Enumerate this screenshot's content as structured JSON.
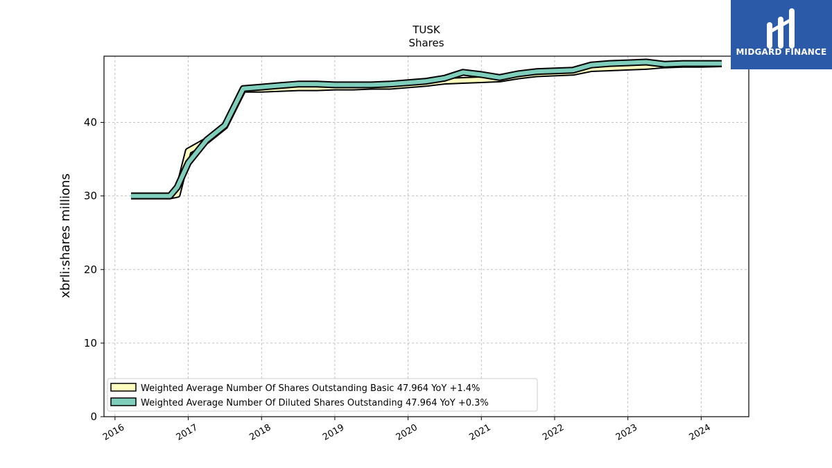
{
  "brand": {
    "name": "MIDGARD FINANCE",
    "color": "#2b5aa8"
  },
  "chart_data": {
    "type": "line",
    "title": "TUSK",
    "subtitle": "Shares",
    "ylabel": "xbrli:shares millions",
    "xlabel": "",
    "xlim": [
      2015.85,
      2024.65
    ],
    "ylim": [
      0,
      49
    ],
    "x_ticks": [
      "2016",
      "2017",
      "2018",
      "2019",
      "2020",
      "2021",
      "2022",
      "2023",
      "2024"
    ],
    "y_ticks": [
      0,
      10,
      20,
      30,
      40
    ],
    "grid": true,
    "legend_position": "lower-left",
    "series": [
      {
        "name": "Weighted Average Number Of Shares Outstanding Basic",
        "legend_label": "Weighted Average Number Of Shares Outstanding Basic  47.964 YoY +1.4%",
        "color": "#ffffc0",
        "x": [
          2016.22,
          2016.75,
          2016.85,
          2017.0,
          2017.25,
          2017.5,
          2017.75,
          2018.0,
          2018.5,
          2018.75,
          2019.0,
          2019.25,
          2019.5,
          2019.75,
          2020.0,
          2020.25,
          2020.5,
          2020.75,
          2021.0,
          2021.25,
          2021.5,
          2021.75,
          2022.0,
          2022.25,
          2022.5,
          2022.75,
          2023.0,
          2023.25,
          2023.5,
          2023.75,
          2024.0,
          2024.28
        ],
        "y": [
          30.0,
          30.0,
          30.2,
          36.1,
          37.5,
          39.5,
          44.5,
          44.5,
          44.7,
          44.7,
          44.8,
          44.8,
          44.9,
          44.9,
          45.1,
          45.3,
          45.6,
          45.7,
          45.8,
          45.9,
          46.3,
          46.6,
          46.7,
          46.8,
          47.3,
          47.4,
          47.5,
          47.6,
          47.8,
          47.9,
          47.9,
          47.964
        ]
      },
      {
        "name": "Weighted Average Number Of Diluted Shares Outstanding",
        "legend_label": "Weighted Average Number Of Diluted Shares Outstanding  47.964 YoY +0.3%",
        "color": "#7fcdbb",
        "x": [
          2016.22,
          2016.75,
          2016.85,
          2017.0,
          2017.25,
          2017.5,
          2017.75,
          2018.0,
          2018.25,
          2018.5,
          2018.75,
          2019.0,
          2019.25,
          2019.5,
          2019.75,
          2020.0,
          2020.25,
          2020.5,
          2020.75,
          2021.0,
          2021.25,
          2021.5,
          2021.75,
          2022.0,
          2022.25,
          2022.5,
          2022.75,
          2023.0,
          2023.25,
          2023.5,
          2023.75,
          2024.0,
          2024.28
        ],
        "y": [
          30.0,
          30.0,
          31.2,
          34.5,
          37.6,
          39.6,
          44.6,
          44.8,
          45.0,
          45.2,
          45.2,
          45.1,
          45.1,
          45.1,
          45.2,
          45.4,
          45.6,
          46.0,
          46.8,
          46.5,
          46.1,
          46.6,
          46.9,
          47.0,
          47.1,
          47.8,
          48.0,
          48.1,
          48.2,
          47.9,
          48.0,
          48.0,
          48.0
        ]
      }
    ]
  }
}
